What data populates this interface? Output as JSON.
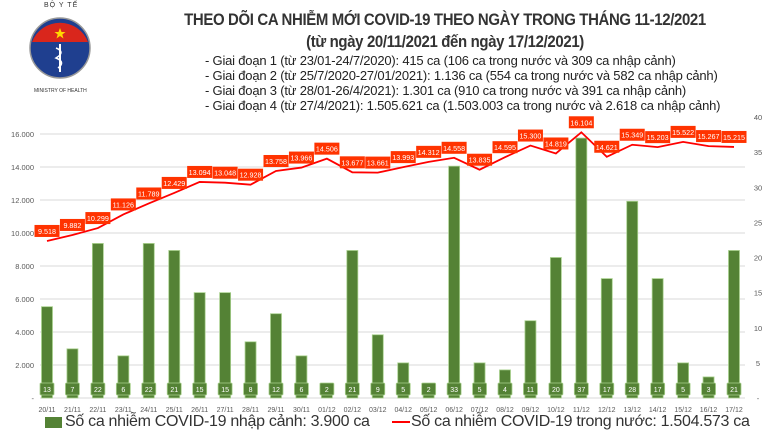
{
  "header": {
    "logo_text": "BỘ Y TẾ",
    "logo_subtext": "MINISTRY OF HEALTH",
    "title": "THEO DÕI CA NHIỄM MỚI COVID-19 THEO NGÀY TRONG THÁNG 11-12/2021",
    "subtitle": "(từ ngày 20/11/2021 đến ngày 17/12/2021)",
    "notes": [
      "- Giai đoạn 1 (từ 23/01-24/7/2020): 415 ca (106 ca trong nước và 309 ca nhập cảnh)",
      "- Giai đoạn 2 (từ 25/7/2020-27/01/2021): 1.136 ca (554 ca trong nước và 582 ca nhập cảnh)",
      "- Giai đoạn 3 (từ 28/01-26/4/2021): 1.301 ca (910 ca trong nước và 391 ca nhập cảnh)",
      "- Giai đoạn 4 (từ 27/4/2021): 1.505.621 ca (1.503.003 ca trong nước và 2.618 ca nhập cảnh)"
    ]
  },
  "chart_data": {
    "type": "bar+line",
    "categories": [
      "20/11",
      "21/11",
      "22/11",
      "23/11",
      "24/11",
      "25/11",
      "26/11",
      "27/11",
      "28/11",
      "29/11",
      "30/11",
      "01/12",
      "02/12",
      "03/12",
      "04/12",
      "05/12",
      "06/12",
      "07/12",
      "08/12",
      "09/12",
      "10/12",
      "11/12",
      "12/12",
      "13/12",
      "14/12",
      "15/12",
      "16/12",
      "17/12"
    ],
    "series": [
      {
        "name": "Số ca nhiễm COVID-19 nhập cảnh: 3.900 ca",
        "type": "bar",
        "axis": "right",
        "color": "#548235",
        "values": [
          13,
          7,
          22,
          6,
          22,
          21,
          15,
          15,
          8,
          12,
          6,
          2,
          21,
          9,
          5,
          2,
          33,
          5,
          4,
          11,
          20,
          37,
          17,
          28,
          17,
          5,
          3,
          21
        ]
      },
      {
        "name": "Số ca nhiễm COVID-19 trong nước: 1.504.573 ca",
        "type": "line",
        "axis": "left",
        "color": "#ff0000",
        "values": [
          9518,
          9882,
          10299,
          11126,
          11789,
          12429,
          13094,
          13048,
          12928,
          13758,
          13966,
          14506,
          13677,
          13661,
          13993,
          14312,
          14558,
          13835,
          14595,
          15300,
          14819,
          16104,
          14621,
          15349,
          15203,
          15522,
          15267,
          15215
        ],
        "labels": [
          "9.518",
          "9.882",
          "10.299",
          "11.126",
          "11.789",
          "12.429",
          "13.094",
          "13.048",
          "12.928",
          "13.758",
          "13.966",
          "14.506",
          "13.677",
          "13.661",
          "13.993",
          "14.312",
          "14.558",
          "13.835",
          "14.595",
          "15.300",
          "14.819",
          "16.104",
          "14.621",
          "15.349",
          "15.203",
          "15.522",
          "15.267",
          "15.215"
        ]
      }
    ],
    "left_axis": {
      "ylim": [
        0,
        16000
      ],
      "ticks": [
        "-",
        "2.000",
        "4.000",
        "6.000",
        "8.000",
        "10.000",
        "12.000",
        "14.000",
        "16.000"
      ]
    },
    "right_axis": {
      "ylim": [
        0,
        40
      ],
      "ticks": [
        "-",
        "5",
        "10",
        "15",
        "20",
        "25",
        "30",
        "35",
        "40"
      ]
    },
    "grid": true,
    "legend": "bottom",
    "label_box_color": "#ff3300"
  }
}
